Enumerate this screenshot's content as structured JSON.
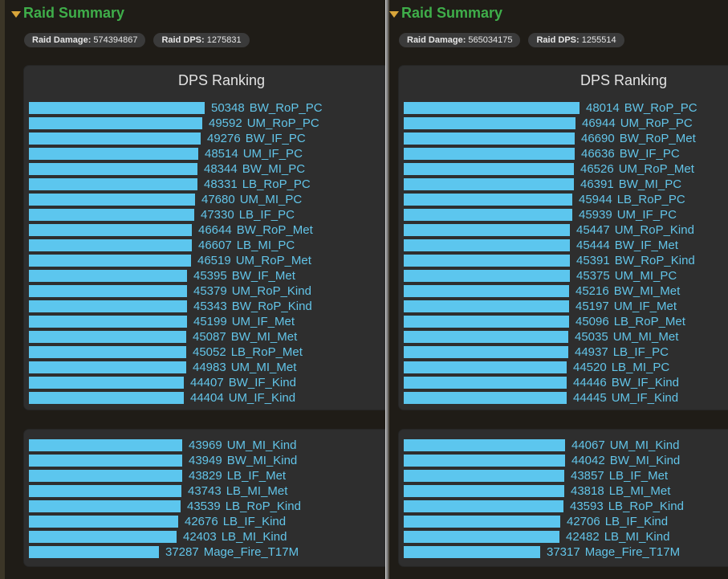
{
  "left": {
    "header": "Raid Summary",
    "stats": {
      "damage_label": "Raid Damage:",
      "damage_value": "574394867",
      "dps_label": "Raid DPS:",
      "dps_value": "1275831"
    },
    "chart_title": "DPS Ranking",
    "chart_data": {
      "type": "bar",
      "title": "DPS Ranking",
      "max_value": 50348,
      "rows_top": [
        {
          "value": 50348,
          "name": "BW_RoP_PC"
        },
        {
          "value": 49592,
          "name": "UM_RoP_PC"
        },
        {
          "value": 49276,
          "name": "BW_IF_PC"
        },
        {
          "value": 48514,
          "name": "UM_IF_PC"
        },
        {
          "value": 48344,
          "name": "BW_MI_PC"
        },
        {
          "value": 48331,
          "name": "LB_RoP_PC"
        },
        {
          "value": 47680,
          "name": "UM_MI_PC"
        },
        {
          "value": 47330,
          "name": "LB_IF_PC"
        },
        {
          "value": 46644,
          "name": "BW_RoP_Met"
        },
        {
          "value": 46607,
          "name": "LB_MI_PC"
        },
        {
          "value": 46519,
          "name": "UM_RoP_Met"
        },
        {
          "value": 45395,
          "name": "BW_IF_Met"
        },
        {
          "value": 45379,
          "name": "UM_RoP_Kind"
        },
        {
          "value": 45343,
          "name": "BW_RoP_Kind"
        },
        {
          "value": 45199,
          "name": "UM_IF_Met"
        },
        {
          "value": 45087,
          "name": "BW_MI_Met"
        },
        {
          "value": 45052,
          "name": "LB_RoP_Met"
        },
        {
          "value": 44983,
          "name": "UM_MI_Met"
        },
        {
          "value": 44407,
          "name": "BW_IF_Kind"
        },
        {
          "value": 44404,
          "name": "UM_IF_Kind"
        }
      ],
      "rows_bottom": [
        {
          "value": 43969,
          "name": "UM_MI_Kind"
        },
        {
          "value": 43949,
          "name": "BW_MI_Kind"
        },
        {
          "value": 43829,
          "name": "LB_IF_Met"
        },
        {
          "value": 43743,
          "name": "LB_MI_Met"
        },
        {
          "value": 43539,
          "name": "LB_RoP_Kind"
        },
        {
          "value": 42676,
          "name": "LB_IF_Kind"
        },
        {
          "value": 42403,
          "name": "LB_MI_Kind"
        },
        {
          "value": 37287,
          "name": "Mage_Fire_T17M"
        }
      ]
    }
  },
  "right": {
    "header": "Raid Summary",
    "stats": {
      "damage_label": "Raid Damage:",
      "damage_value": "565034175",
      "dps_label": "Raid DPS:",
      "dps_value": "1255514"
    },
    "chart_title": "DPS Ranking",
    "chart_data": {
      "type": "bar",
      "title": "DPS Ranking",
      "max_value": 48014,
      "rows_top": [
        {
          "value": 48014,
          "name": "BW_RoP_PC"
        },
        {
          "value": 46944,
          "name": "UM_RoP_PC"
        },
        {
          "value": 46690,
          "name": "BW_RoP_Met"
        },
        {
          "value": 46636,
          "name": "BW_IF_PC"
        },
        {
          "value": 46526,
          "name": "UM_RoP_Met"
        },
        {
          "value": 46391,
          "name": "BW_MI_PC"
        },
        {
          "value": 45944,
          "name": "LB_RoP_PC"
        },
        {
          "value": 45939,
          "name": "UM_IF_PC"
        },
        {
          "value": 45447,
          "name": "UM_RoP_Kind"
        },
        {
          "value": 45444,
          "name": "BW_IF_Met"
        },
        {
          "value": 45391,
          "name": "BW_RoP_Kind"
        },
        {
          "value": 45375,
          "name": "UM_MI_PC"
        },
        {
          "value": 45216,
          "name": "BW_MI_Met"
        },
        {
          "value": 45197,
          "name": "UM_IF_Met"
        },
        {
          "value": 45096,
          "name": "LB_RoP_Met"
        },
        {
          "value": 45035,
          "name": "UM_MI_Met"
        },
        {
          "value": 44937,
          "name": "LB_IF_PC"
        },
        {
          "value": 44520,
          "name": "LB_MI_PC"
        },
        {
          "value": 44446,
          "name": "BW_IF_Kind"
        },
        {
          "value": 44445,
          "name": "UM_IF_Kind"
        }
      ],
      "rows_bottom": [
        {
          "value": 44067,
          "name": "UM_MI_Kind"
        },
        {
          "value": 44042,
          "name": "BW_MI_Kind"
        },
        {
          "value": 43857,
          "name": "LB_IF_Met"
        },
        {
          "value": 43818,
          "name": "LB_MI_Met"
        },
        {
          "value": 43593,
          "name": "LB_RoP_Kind"
        },
        {
          "value": 42706,
          "name": "LB_IF_Kind"
        },
        {
          "value": 42482,
          "name": "LB_MI_Kind"
        },
        {
          "value": 37317,
          "name": "Mage_Fire_T17M"
        }
      ]
    }
  },
  "colors": {
    "bar": "#5cc6ee",
    "label": "#62c4e8",
    "header": "#3fae4a",
    "caret": "#d8a53a"
  }
}
